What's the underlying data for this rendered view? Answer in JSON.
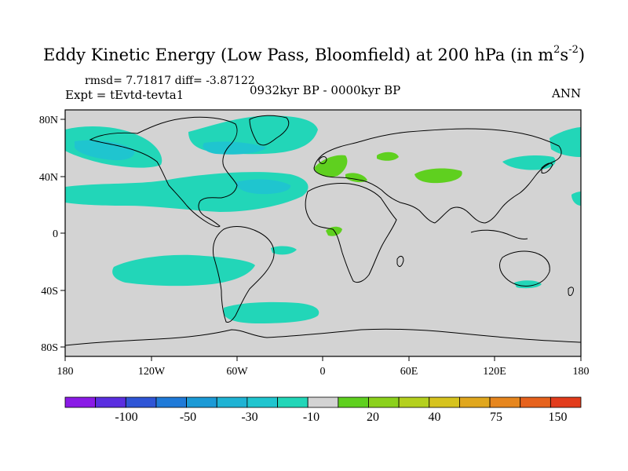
{
  "title": {
    "main": "Eddy Kinetic Energy (Low Pass, Bloomfield) at 200 hPa (in m",
    "sup1": "2",
    "mid": "s",
    "sup2": "-2",
    "end": ")"
  },
  "stats": "rmsd= 7.71817 diff= -3.87122",
  "experiment": "Expt = tEvtd-tevta1",
  "period": "0932kyr BP - 0000kyr BP",
  "season": "ANN",
  "lat_labels": [
    "80N",
    "40N",
    "0",
    "40S",
    "80S"
  ],
  "lon_labels": [
    "180",
    "120W",
    "60W",
    "0",
    "60E",
    "120E",
    "180"
  ],
  "colorbar": {
    "colors": [
      "#8a1ae6",
      "#5a2ee0",
      "#2f55d6",
      "#1f7ad8",
      "#1c9ad6",
      "#1fb3d4",
      "#20c5cf",
      "#22d6b8",
      "#d3d3d3",
      "#5fd01f",
      "#8bd11c",
      "#b4d01e",
      "#d6c31e",
      "#e0a71e",
      "#e6861e",
      "#e6621d",
      "#e23c1c"
    ],
    "labels": [
      "-100",
      "-50",
      "-30",
      "-10",
      "20",
      "40",
      "75",
      "150"
    ]
  },
  "colors": {
    "land_ocean": "#d3d3d3",
    "neg_light": "#22d6b8",
    "neg_mid": "#1fc5cf",
    "neg_strong": "#1fb3d4",
    "pos_light": "#5fd01f"
  }
}
